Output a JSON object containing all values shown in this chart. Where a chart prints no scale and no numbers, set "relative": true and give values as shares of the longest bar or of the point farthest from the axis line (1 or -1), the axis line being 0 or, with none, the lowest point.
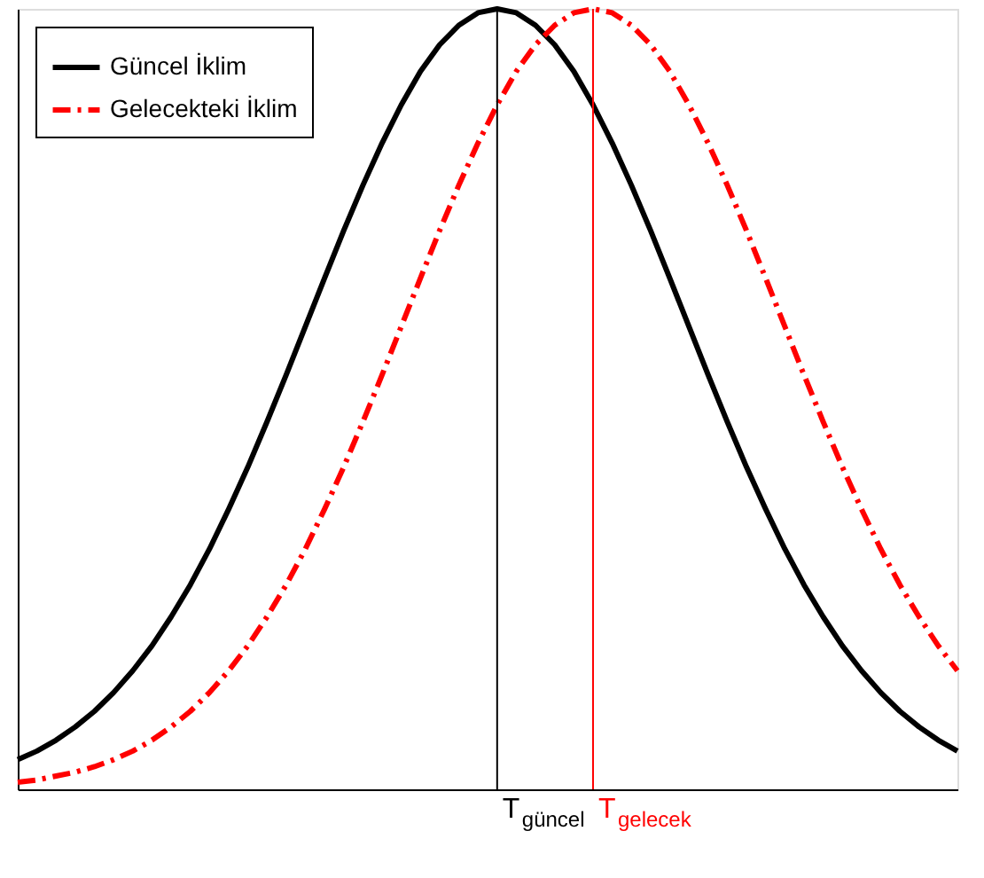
{
  "chart_data": {
    "type": "line",
    "relative": true,
    "categories": [
      null,
      null,
      null,
      null,
      null,
      null,
      null,
      null,
      null,
      null,
      null,
      null,
      null,
      null,
      null,
      null,
      null,
      null,
      null,
      null,
      null,
      null,
      null,
      null,
      null,
      null,
      null,
      null,
      null,
      null,
      null,
      null,
      null,
      null,
      null,
      null,
      null,
      null,
      null,
      null,
      null,
      null,
      null,
      null,
      null,
      null,
      null,
      null,
      null,
      null
    ],
    "series": [
      {
        "name": "Güncel İklim",
        "color": "#000000",
        "line_style": "solid",
        "values": [
          0.038,
          0.049,
          0.063,
          0.08,
          0.1,
          0.124,
          0.152,
          0.184,
          0.221,
          0.262,
          0.308,
          0.359,
          0.413,
          0.471,
          0.531,
          0.593,
          0.655,
          0.716,
          0.774,
          0.828,
          0.877,
          0.92,
          0.954,
          0.979,
          0.995,
          1,
          0.995,
          0.979,
          0.954,
          0.92,
          0.877,
          0.828,
          0.774,
          0.716,
          0.655,
          0.593,
          0.531,
          0.471,
          0.413,
          0.359,
          0.308,
          0.262,
          0.221,
          0.184,
          0.152,
          0.124,
          0.1,
          0.08,
          0.063,
          0.049
        ]
      },
      {
        "name": "Gelecekteki İklim",
        "color": "#ff0000",
        "line_style": "dashed",
        "values": [
          0.009,
          0.012,
          0.017,
          0.022,
          0.029,
          0.038,
          0.049,
          0.063,
          0.08,
          0.1,
          0.124,
          0.152,
          0.184,
          0.221,
          0.262,
          0.308,
          0.359,
          0.413,
          0.471,
          0.531,
          0.593,
          0.655,
          0.716,
          0.774,
          0.828,
          0.877,
          0.92,
          0.954,
          0.979,
          0.995,
          1,
          0.995,
          0.979,
          0.954,
          0.92,
          0.877,
          0.828,
          0.774,
          0.716,
          0.655,
          0.593,
          0.531,
          0.471,
          0.413,
          0.359,
          0.308,
          0.262,
          0.221,
          0.184,
          0.152
        ]
      }
    ],
    "annotations": [
      "T$_{güncel}$",
      "T$_{gelecek}$"
    ],
    "legend": "top left",
    "grid": false,
    "marker": "none"
  }
}
